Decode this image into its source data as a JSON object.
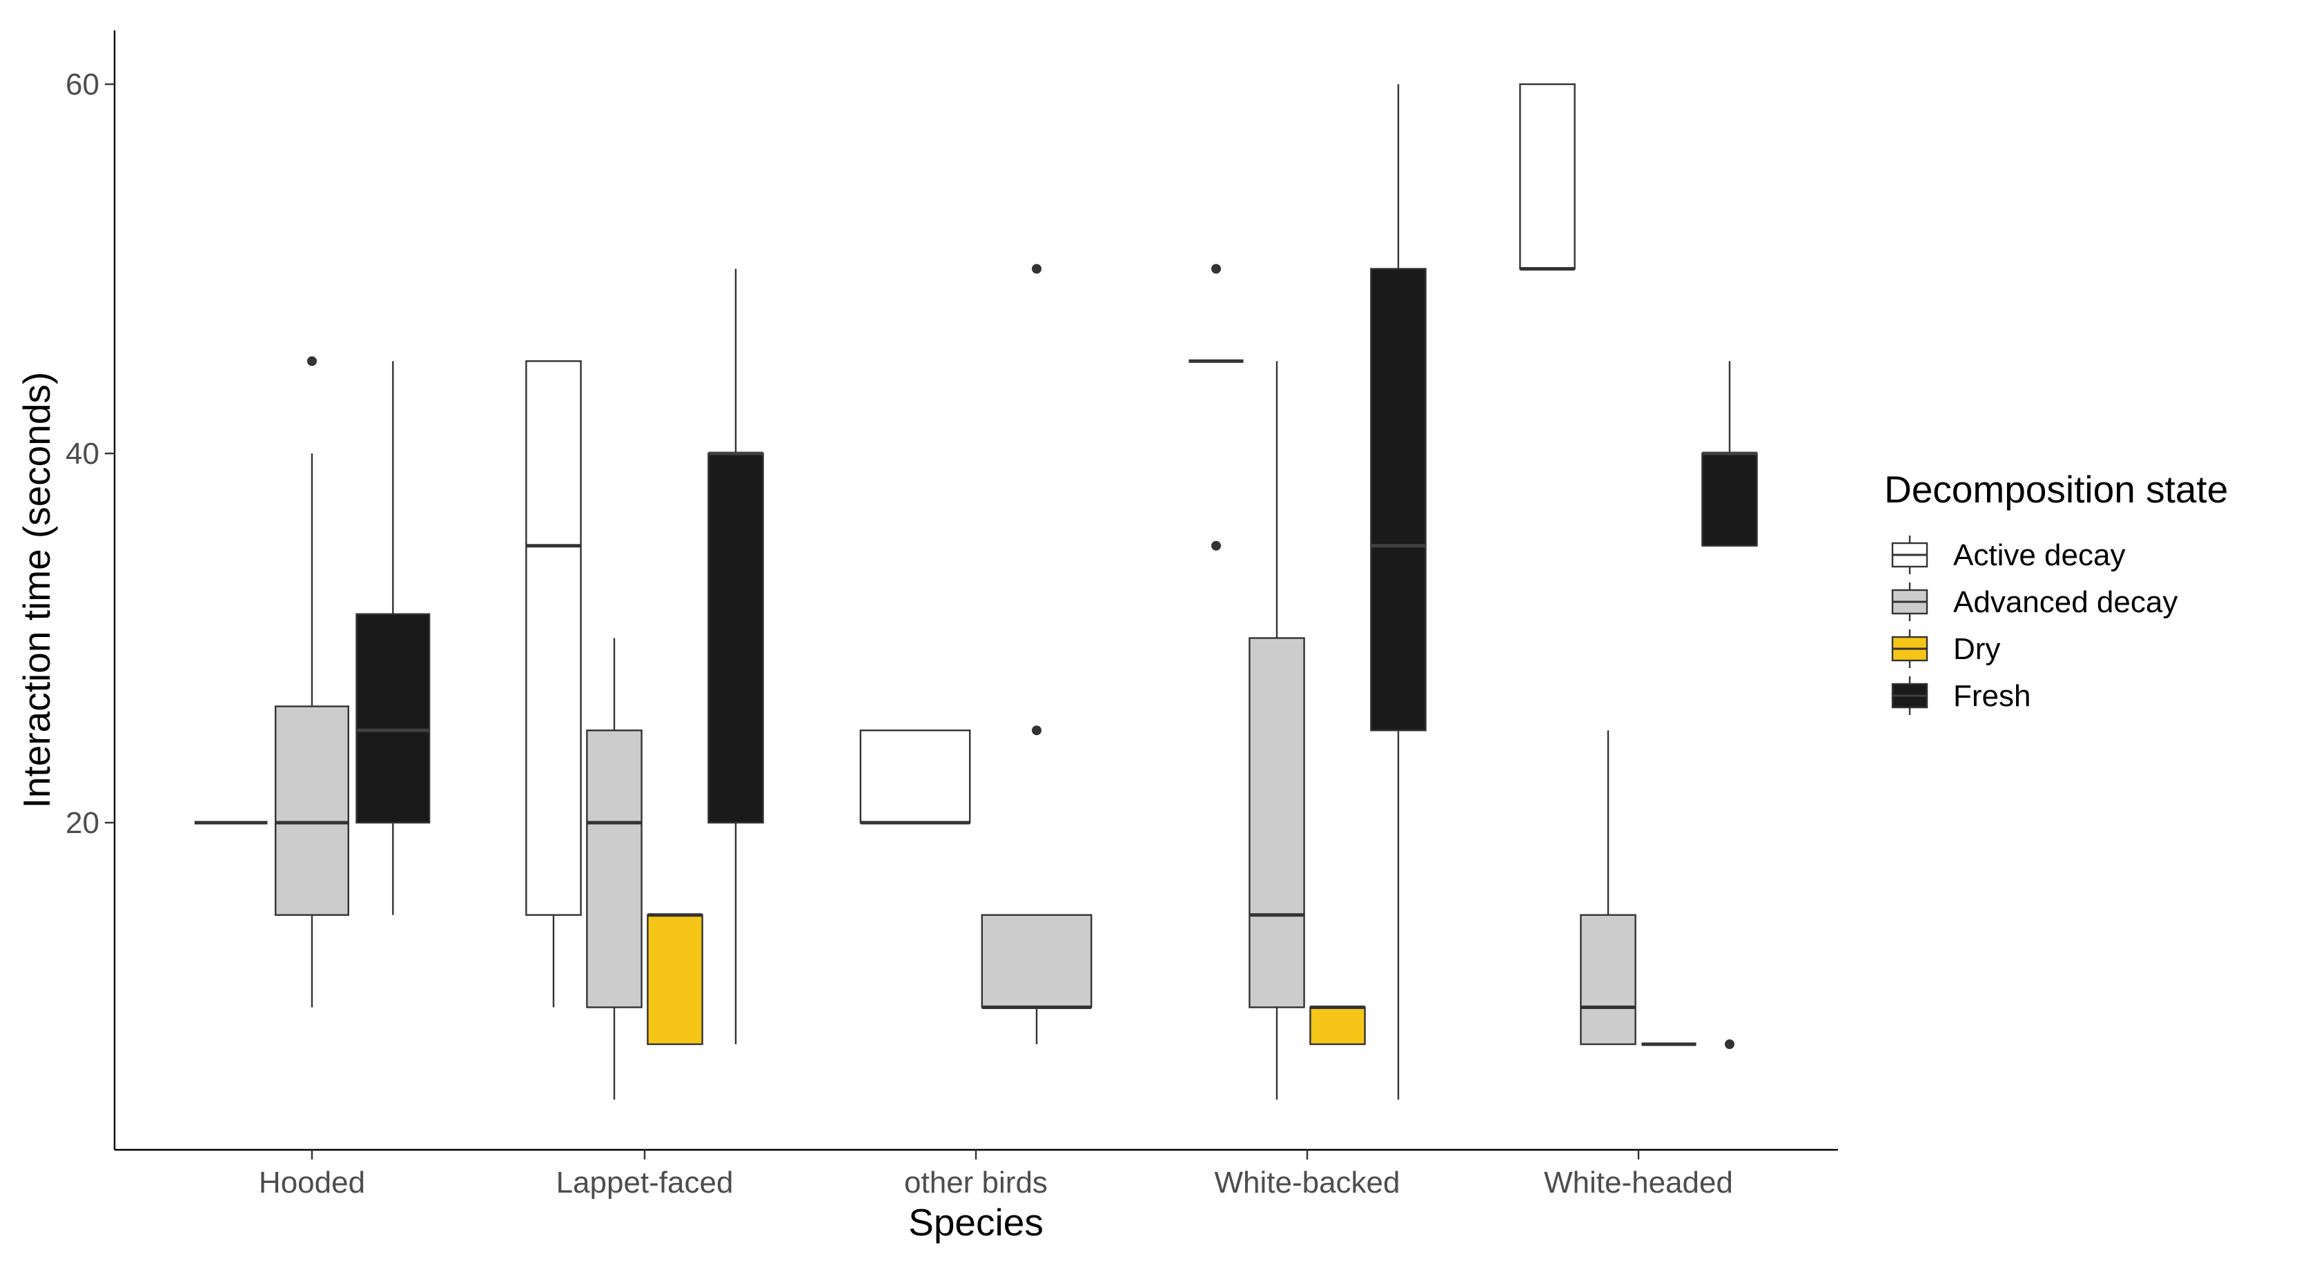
{
  "chart_data": {
    "type": "boxplot",
    "title": "",
    "xlabel": "Species",
    "ylabel": "Interaction time (seconds)",
    "ylim": [
      3,
      63
    ],
    "yticks": [
      20,
      40,
      60
    ],
    "categories": [
      "Hooded",
      "Lappet-faced",
      "other birds",
      "White-backed",
      "White-headed"
    ],
    "legend": {
      "title": "Decomposition state",
      "position": "right",
      "items": [
        {
          "label": "Active decay",
          "color": "#FFFFFF"
        },
        {
          "label": "Advanced decay",
          "color": "#CCCCCC"
        },
        {
          "label": "Dry",
          "color": "#F5C518"
        },
        {
          "label": "Fresh",
          "color": "#1A1A1A"
        }
      ]
    },
    "series": [
      {
        "name": "Active decay",
        "boxes": [
          {
            "category": "Hooded",
            "slot": 0,
            "slots": 3,
            "min": 20,
            "q1": 20,
            "median": 20,
            "q3": 20,
            "max": 20,
            "outliers": []
          },
          {
            "category": "Lappet-faced",
            "slot": 0,
            "slots": 4,
            "min": 10,
            "q1": 15,
            "median": 35,
            "q3": 45,
            "max": 45,
            "outliers": []
          },
          {
            "category": "other birds",
            "slot": 0,
            "slots": 2,
            "min": 20,
            "q1": 20,
            "median": 20,
            "q3": 25,
            "max": 25,
            "outliers": []
          },
          {
            "category": "White-backed",
            "slot": 0,
            "slots": 4,
            "min": 45,
            "q1": 45,
            "median": 45,
            "q3": 45,
            "max": 45,
            "outliers": [
              50,
              35
            ]
          },
          {
            "category": "White-headed",
            "slot": 0,
            "slots": 4,
            "min": 50,
            "q1": 50,
            "median": 50,
            "q3": 60,
            "max": 60,
            "outliers": []
          }
        ]
      },
      {
        "name": "Advanced decay",
        "boxes": [
          {
            "category": "Hooded",
            "slot": 1,
            "slots": 3,
            "min": 10,
            "q1": 15,
            "median": 20,
            "q3": 26.3,
            "max": 40,
            "outliers": [
              45
            ]
          },
          {
            "category": "Lappet-faced",
            "slot": 1,
            "slots": 4,
            "min": 5,
            "q1": 10,
            "median": 20,
            "q3": 25,
            "max": 30,
            "outliers": []
          },
          {
            "category": "other birds",
            "slot": 1,
            "slots": 2,
            "min": 8,
            "q1": 10,
            "median": 10,
            "q3": 15,
            "max": 15,
            "outliers": [
              50,
              25
            ]
          },
          {
            "category": "White-backed",
            "slot": 1,
            "slots": 4,
            "min": 5,
            "q1": 10,
            "median": 15,
            "q3": 30,
            "max": 45,
            "outliers": []
          },
          {
            "category": "White-headed",
            "slot": 1,
            "slots": 4,
            "min": 8,
            "q1": 8,
            "median": 10,
            "q3": 15,
            "max": 25,
            "outliers": []
          }
        ]
      },
      {
        "name": "Dry",
        "boxes": [
          {
            "category": "Lappet-faced",
            "slot": 2,
            "slots": 4,
            "min": 8,
            "q1": 8,
            "median": 15,
            "q3": 15,
            "max": 15,
            "outliers": []
          },
          {
            "category": "White-backed",
            "slot": 2,
            "slots": 4,
            "min": 8,
            "q1": 8,
            "median": 10,
            "q3": 10,
            "max": 10,
            "outliers": []
          },
          {
            "category": "White-headed",
            "slot": 2,
            "slots": 4,
            "min": 8,
            "q1": 8,
            "median": 8,
            "q3": 8,
            "max": 8,
            "outliers": []
          }
        ]
      },
      {
        "name": "Fresh",
        "boxes": [
          {
            "category": "Hooded",
            "slot": 2,
            "slots": 3,
            "min": 15,
            "q1": 20,
            "median": 25,
            "q3": 31.3,
            "max": 45,
            "outliers": []
          },
          {
            "category": "Lappet-faced",
            "slot": 3,
            "slots": 4,
            "min": 8,
            "q1": 20,
            "median": 40,
            "q3": 40,
            "max": 50,
            "outliers": []
          },
          {
            "category": "White-backed",
            "slot": 3,
            "slots": 4,
            "min": 5,
            "q1": 25,
            "median": 35,
            "q3": 50,
            "max": 60,
            "outliers": []
          },
          {
            "category": "White-headed",
            "slot": 3,
            "slots": 4,
            "min": 35,
            "q1": 35,
            "median": 40,
            "q3": 40,
            "max": 45,
            "outliers": [
              8
            ]
          }
        ]
      }
    ]
  }
}
